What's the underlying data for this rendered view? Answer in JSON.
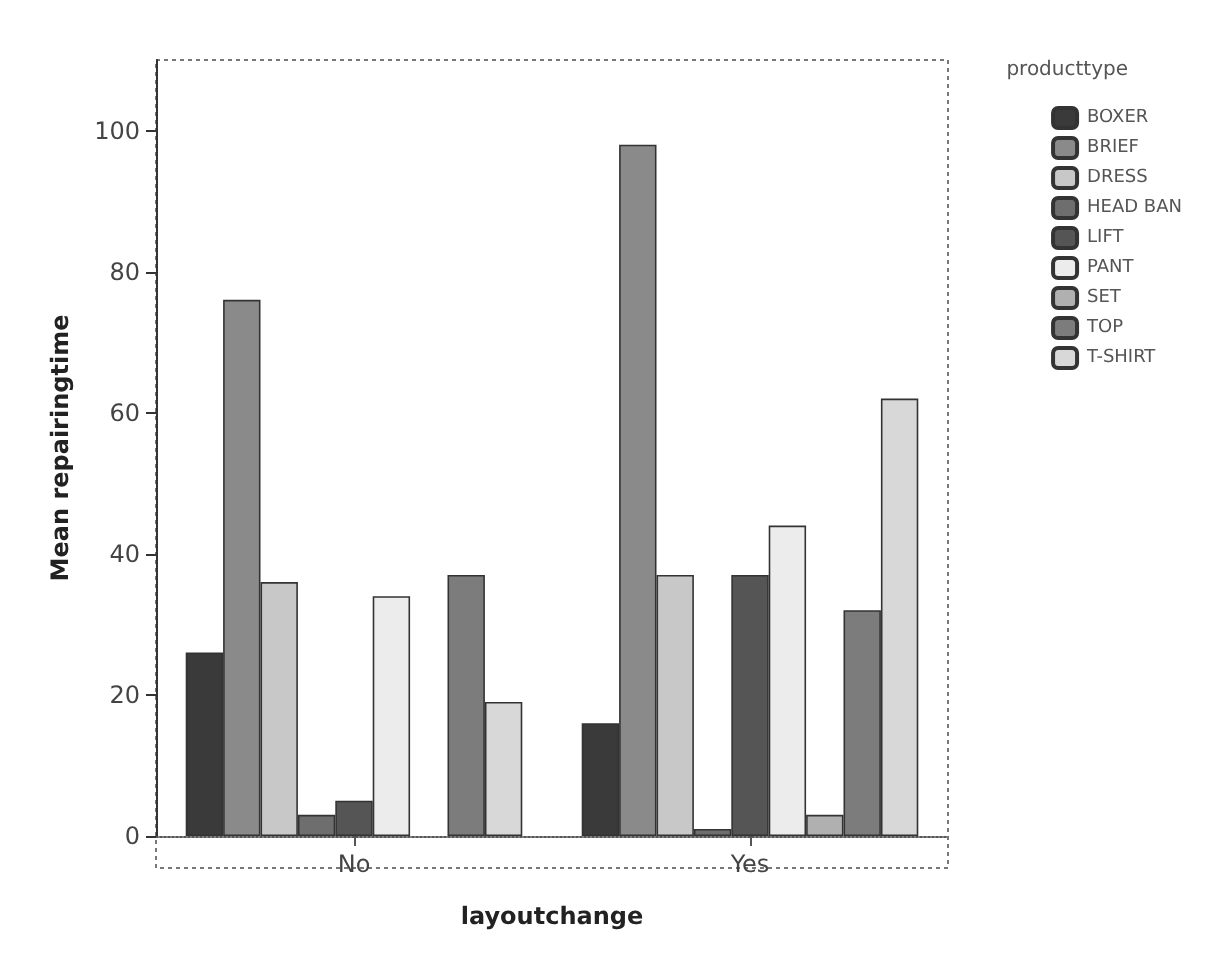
{
  "chart_data": {
    "type": "bar",
    "xlabel": "layoutchange",
    "ylabel": "Mean repairingtime",
    "legend_title": "producttype",
    "legend": "right",
    "grid": false,
    "categories": [
      "No",
      "Yes"
    ],
    "ylim": [
      0,
      110
    ],
    "yticks": [
      0,
      20,
      40,
      60,
      80,
      100
    ],
    "series": [
      {
        "name": "BOXER",
        "color": "#3a3a3a",
        "values": [
          26,
          16
        ]
      },
      {
        "name": "BRIEF",
        "color": "#8a8a8a",
        "values": [
          76,
          98
        ]
      },
      {
        "name": "DRESS",
        "color": "#c8c8c8",
        "values": [
          36,
          37
        ]
      },
      {
        "name": "HEAD BAN",
        "color": "#6e6e6e",
        "values": [
          3,
          1
        ]
      },
      {
        "name": "LIFT",
        "color": "#555555",
        "values": [
          5,
          37
        ]
      },
      {
        "name": "PANT",
        "color": "#ececec",
        "values": [
          34,
          44
        ]
      },
      {
        "name": "SET",
        "color": "#b0b0b0",
        "values": [
          null,
          3
        ]
      },
      {
        "name": "TOP",
        "color": "#7c7c7c",
        "values": [
          37,
          32
        ]
      },
      {
        "name": "T-SHIRT",
        "color": "#d8d8d8",
        "values": [
          19,
          62
        ]
      }
    ]
  }
}
